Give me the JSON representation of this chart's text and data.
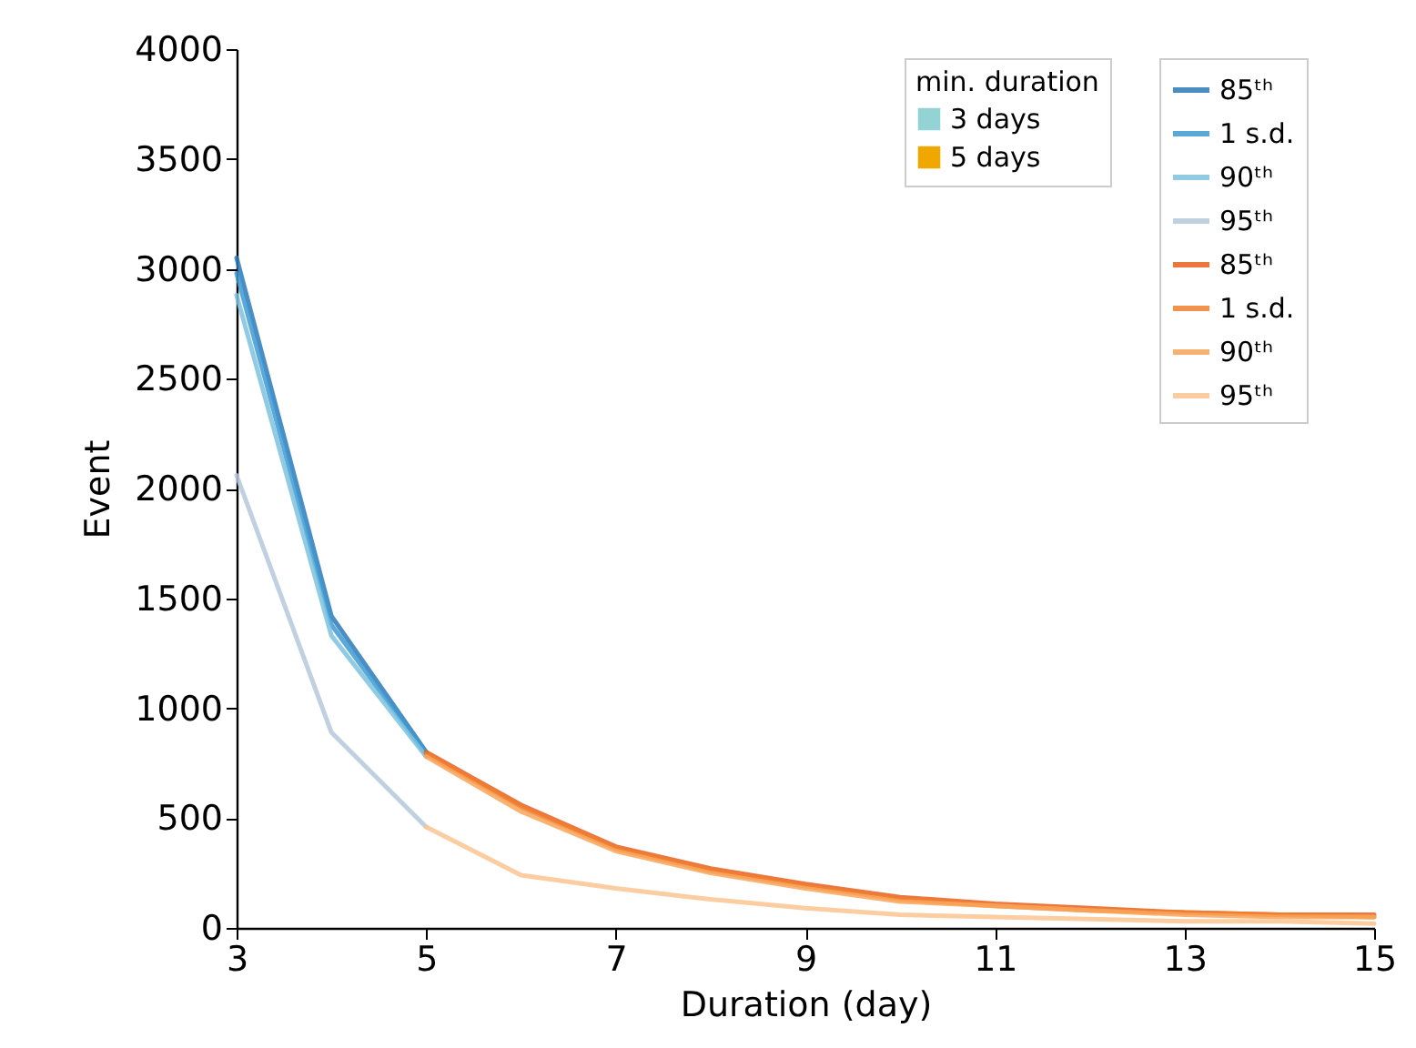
{
  "chart_data": {
    "type": "line",
    "xlabel": "Duration (day)",
    "ylabel": "Event",
    "legend_title": "min. duration",
    "xlim": [
      3,
      15
    ],
    "xticks": [
      3,
      5,
      7,
      9,
      11,
      13,
      15
    ],
    "ylim": [
      0,
      4000
    ],
    "yticks": [
      0,
      500,
      1000,
      1500,
      2000,
      2500,
      3000,
      3500,
      4000
    ],
    "grid": false,
    "legend": "top right",
    "line_style": "solid",
    "series": [
      {
        "name": "85ᵗʰ",
        "color": "#2a7ab8",
        "x": [
          3,
          4,
          5
        ],
        "values": [
          3050,
          1420,
          800
        ]
      },
      {
        "name": "1 s.d.",
        "color": "#3d9ad2",
        "x": [
          3,
          4,
          5
        ],
        "values": [
          2980,
          1380,
          790
        ]
      },
      {
        "name": "90ᵗʰ",
        "color": "#7dc2de",
        "x": [
          3,
          4,
          5
        ],
        "values": [
          2880,
          1330,
          780
        ]
      },
      {
        "name": "95ᵗʰ",
        "color": "#b5c8da",
        "x": [
          3,
          4,
          5
        ],
        "values": [
          2060,
          890,
          460
        ]
      },
      {
        "name": "85ᵗʰ",
        "color": "#e8601c",
        "x": [
          5,
          6,
          7,
          8,
          9,
          10,
          11,
          12,
          13,
          14,
          15
        ],
        "values": [
          800,
          560,
          370,
          270,
          200,
          140,
          110,
          90,
          70,
          60,
          60
        ]
      },
      {
        "name": "1 s.d.",
        "color": "#f07f2e",
        "x": [
          5,
          6,
          7,
          8,
          9,
          10,
          11,
          12,
          13,
          14,
          15
        ],
        "values": [
          790,
          550,
          360,
          260,
          190,
          130,
          100,
          80,
          70,
          60,
          50
        ]
      },
      {
        "name": "90ᵗʰ",
        "color": "#f9a45a",
        "x": [
          5,
          6,
          7,
          8,
          9,
          10,
          11,
          12,
          13,
          14,
          15
        ],
        "values": [
          780,
          530,
          350,
          250,
          180,
          120,
          100,
          80,
          60,
          50,
          50
        ]
      },
      {
        "name": "95ᵗʰ",
        "color": "#fbc490",
        "x": [
          5,
          6,
          7,
          8,
          9,
          10,
          11,
          12,
          13,
          14,
          15
        ],
        "values": [
          460,
          240,
          180,
          130,
          90,
          60,
          50,
          40,
          30,
          30,
          20
        ]
      },
      {
        "type": "scatter",
        "name": "3 days",
        "color": "#93d3d6",
        "marker": "square"
      },
      {
        "type": "scatter",
        "name": "5 days",
        "color": "#f0a800",
        "marker": "square"
      }
    ]
  }
}
